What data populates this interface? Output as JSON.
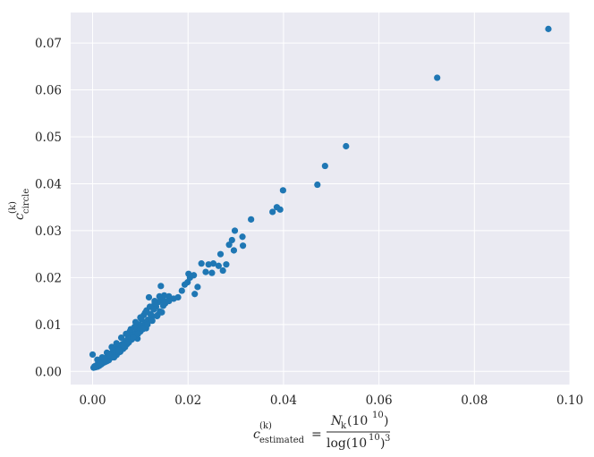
{
  "chart_data": {
    "type": "scatter",
    "title": "",
    "xlabel": {
      "lhs_base": "c",
      "lhs_superscript": "(k)",
      "lhs_subscript": "estimated",
      "equals": "=",
      "numerator": "N",
      "numerator_subscript": "k",
      "numerator_arg": "(10",
      "numerator_arg_exp": "10",
      "numerator_arg_close": ")",
      "denominator": "log(10",
      "denominator_exp": "10",
      "denominator_close": ")",
      "denominator_power": "3"
    },
    "ylabel": {
      "base": "c",
      "superscript": "(k)",
      "subscript": "circle"
    },
    "xlim": [
      -0.0046,
      0.1
    ],
    "ylim": [
      -0.0028,
      0.0765
    ],
    "xticks": [
      0.0,
      0.02,
      0.04,
      0.06,
      0.08,
      0.1
    ],
    "xtick_labels": [
      "0.00",
      "0.02",
      "0.04",
      "0.06",
      "0.08",
      "0.10"
    ],
    "yticks": [
      0.0,
      0.01,
      0.02,
      0.03,
      0.04,
      0.05,
      0.06,
      0.07
    ],
    "ytick_labels": [
      "0.00",
      "0.01",
      "0.02",
      "0.03",
      "0.04",
      "0.05",
      "0.06",
      "0.07"
    ],
    "grid": true,
    "legend": "none",
    "colors": {
      "background": "#EAEAF2",
      "grid": "#FFFFFF",
      "marker": "#1F77B4",
      "text": "#262626"
    },
    "series": [
      {
        "x": [
          0.0955,
          0.0722,
          0.0531,
          0.0487,
          0.0471,
          0.0399,
          0.0393,
          0.0386,
          0.0377,
          0.0332,
          0.0315,
          0.0314,
          0.0298,
          0.0296,
          0.0292,
          0.0286,
          0.028,
          0.0273,
          0.0268,
          0.0264,
          0.0253,
          0.025,
          0.0243,
          0.0237,
          0.0228,
          0.022,
          0.0214,
          0.0212,
          0.0204,
          0.0201,
          0.0199,
          0.0193,
          0.0187,
          0.0179,
          0.017,
          0.016,
          0.0157,
          0.0152,
          0.015,
          0.0148,
          0.0146,
          0.0143,
          0.0141,
          0.0138,
          0.0136,
          0.0133,
          0.013,
          0.0128,
          0.0125,
          0.0121,
          0.0118,
          0.0116,
          0.0113,
          0.0112,
          0.011,
          0.0107,
          0.0105,
          0.0102,
          0.01,
          0.0098,
          0.0096,
          0.0094,
          0.0092,
          0.009,
          0.0088,
          0.0086,
          0.0084,
          0.0082,
          0.008,
          0.0078,
          0.0076,
          0.0074,
          0.0072,
          0.007,
          0.0068,
          0.0066,
          0.0064,
          0.0062,
          0.006,
          0.0058,
          0.0056,
          0.0054,
          0.0052,
          0.005,
          0.0048,
          0.0046,
          0.0044,
          0.0042,
          0.004,
          0.0038,
          0.0036,
          0.0034,
          0.0032,
          0.003,
          0.0028,
          0.0026,
          0.0024,
          0.0022,
          0.002,
          0.0018,
          0.0016,
          0.0014,
          0.0012,
          0.001,
          0.0008,
          0.0006,
          0.0004,
          0.0002,
          0.0,
          0.001,
          0.002,
          0.003,
          0.004,
          0.005,
          0.006,
          0.007,
          0.008,
          0.009,
          0.01,
          0.011,
          0.012,
          0.013,
          0.014,
          0.015,
          0.016,
          0.0065,
          0.0075,
          0.0085,
          0.0095,
          0.0105,
          0.0115,
          0.0125,
          0.0135,
          0.0145,
          0.0035,
          0.0045,
          0.0055,
          0.0025,
          0.0015
        ],
        "y": [
          0.073,
          0.0626,
          0.048,
          0.0438,
          0.0398,
          0.0386,
          0.0345,
          0.035,
          0.034,
          0.0324,
          0.0268,
          0.0287,
          0.03,
          0.0258,
          0.028,
          0.027,
          0.0228,
          0.0215,
          0.025,
          0.0225,
          0.023,
          0.021,
          0.0228,
          0.0212,
          0.023,
          0.018,
          0.0165,
          0.0205,
          0.02,
          0.0208,
          0.019,
          0.0185,
          0.0172,
          0.0158,
          0.0155,
          0.016,
          0.015,
          0.0145,
          0.0162,
          0.014,
          0.0155,
          0.0182,
          0.0128,
          0.0148,
          0.012,
          0.0138,
          0.0145,
          0.0132,
          0.0118,
          0.0122,
          0.0158,
          0.011,
          0.013,
          0.0092,
          0.0105,
          0.012,
          0.0098,
          0.0112,
          0.0085,
          0.01,
          0.0092,
          0.007,
          0.0088,
          0.0078,
          0.0095,
          0.0072,
          0.008,
          0.0068,
          0.0075,
          0.0085,
          0.0062,
          0.007,
          0.0058,
          0.0065,
          0.0052,
          0.006,
          0.0048,
          0.0058,
          0.005,
          0.0042,
          0.0055,
          0.004,
          0.0046,
          0.0035,
          0.0048,
          0.0038,
          0.0032,
          0.0042,
          0.003,
          0.0036,
          0.0028,
          0.0024,
          0.0033,
          0.0022,
          0.0026,
          0.002,
          0.0023,
          0.0018,
          0.0021,
          0.0015,
          0.0019,
          0.0012,
          0.0016,
          0.001,
          0.0013,
          0.0009,
          0.0011,
          0.0008,
          0.0036,
          0.0025,
          0.003,
          0.004,
          0.0052,
          0.006,
          0.0072,
          0.008,
          0.009,
          0.0105,
          0.0115,
          0.0125,
          0.0138,
          0.015,
          0.016,
          0.0148,
          0.015,
          0.0055,
          0.0062,
          0.0072,
          0.008,
          0.009,
          0.01,
          0.0108,
          0.0118,
          0.0126,
          0.0035,
          0.003,
          0.0045,
          0.0028,
          0.0017
        ]
      }
    ]
  }
}
